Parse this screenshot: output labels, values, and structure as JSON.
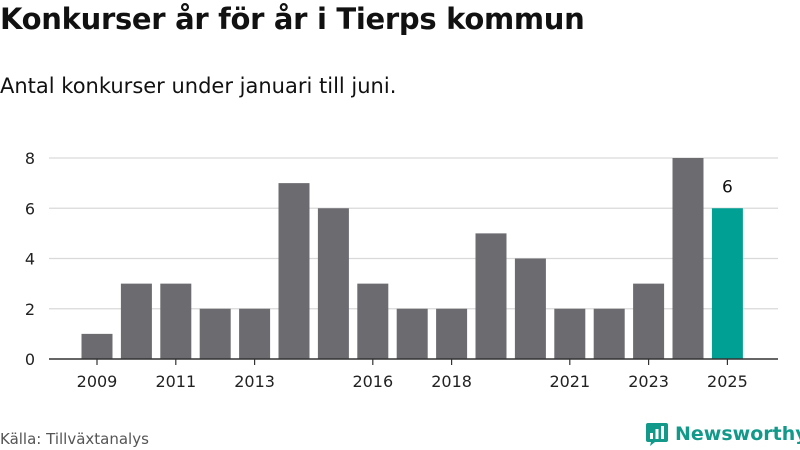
{
  "header": {
    "title": "Konkurser år för år i Tierps kommun",
    "subtitle": "Antal konkurser under januari till juni."
  },
  "footer": {
    "source": "Källa: Tillväxtanalys",
    "brand": "Newsworthy"
  },
  "colors": {
    "bar": "#6c6b70",
    "highlight": "#00a094",
    "grid": "#d9d9d9",
    "axis": "#333333",
    "brand": "#12998a"
  },
  "chart_data": {
    "type": "bar",
    "title": "Konkurser år för år i Tierps kommun",
    "subtitle": "Antal konkurser under januari till juni.",
    "categories": [
      "2009",
      "2010",
      "2011",
      "2012",
      "2013",
      "2014",
      "2015",
      "2016",
      "2017",
      "2018",
      "2019",
      "2020",
      "2021",
      "2022",
      "2023",
      "2024",
      "2025"
    ],
    "values": [
      1,
      3,
      3,
      2,
      2,
      7,
      6,
      3,
      2,
      2,
      5,
      4,
      2,
      2,
      3,
      8,
      6
    ],
    "x_tick_labels": [
      "2009",
      "2011",
      "2013",
      "2016",
      "2018",
      "2021",
      "2023",
      "2025"
    ],
    "y_ticks": [
      0,
      2,
      4,
      6,
      8
    ],
    "ylim": [
      0,
      8
    ],
    "grid": true,
    "highlight_category": "2025",
    "annotations": [
      {
        "category": "2025",
        "text": "6"
      }
    ],
    "xlabel": "",
    "ylabel": ""
  }
}
